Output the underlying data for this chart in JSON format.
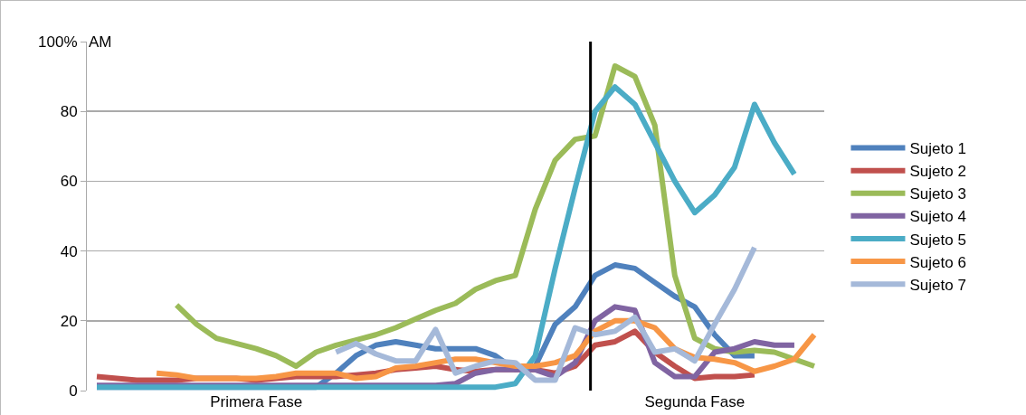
{
  "chart_data": {
    "type": "line",
    "ylabel": "AM",
    "categories": [
      null,
      null,
      null,
      null,
      null,
      null,
      null,
      null,
      "Primera Fase",
      null,
      null,
      null,
      null,
      null,
      null,
      null,
      null,
      null,
      null,
      null,
      null,
      null,
      null,
      null,
      null,
      null,
      null,
      null,
      null,
      null,
      "Segunda Fase",
      null,
      null,
      null,
      null,
      null,
      null
    ],
    "ylim": [
      0,
      100
    ],
    "yticks": [
      0,
      20,
      40,
      60,
      80,
      {
        "value": 100,
        "label": "100%"
      }
    ],
    "grid": "y",
    "legend": "right",
    "marker": "none",
    "line_style": "solid",
    "series": [
      {
        "name": "Sujeto 1",
        "color": "#4f81bd",
        "values": [
          1,
          1,
          1,
          1,
          1,
          1,
          1,
          1,
          1,
          1,
          1,
          1,
          5,
          10,
          13,
          14,
          13,
          12,
          12,
          12,
          10,
          6,
          7,
          19,
          24,
          33,
          36,
          35,
          31,
          27,
          24,
          16,
          10,
          10,
          null,
          null,
          null
        ]
      },
      {
        "name": "Sujeto 2",
        "color": "#c0504d",
        "values": [
          4,
          3.5,
          3,
          3,
          3,
          3.5,
          3.5,
          3.5,
          3,
          3.5,
          4,
          4,
          4,
          4.5,
          5,
          6,
          6.5,
          7,
          6,
          5.5,
          6,
          6,
          6,
          5,
          7,
          13,
          14,
          17,
          11,
          7,
          3.5,
          4,
          4,
          4.5,
          null,
          null,
          null
        ]
      },
      {
        "name": "Sujeto 3",
        "color": "#9bbb59",
        "values": [
          null,
          null,
          null,
          null,
          24.5,
          19,
          15,
          13.5,
          12,
          10,
          7,
          11,
          13,
          14.5,
          16,
          18,
          20.5,
          23,
          25,
          29,
          31.5,
          33,
          52,
          66,
          72,
          73,
          93,
          90,
          76,
          33,
          15,
          12,
          11,
          11.5,
          11,
          9,
          7
        ]
      },
      {
        "name": "Sujeto 4",
        "color": "#8064a2",
        "values": [
          1.5,
          1.5,
          1.5,
          1.5,
          1.5,
          1.5,
          1.5,
          1.5,
          1.5,
          1.5,
          1.5,
          1.5,
          1.5,
          1.5,
          1.5,
          1.5,
          1.5,
          1.5,
          2,
          5,
          6,
          6,
          6,
          4,
          8,
          20,
          24,
          23,
          8,
          4,
          4,
          11,
          12,
          14,
          13,
          13,
          null
        ]
      },
      {
        "name": "Sujeto 5",
        "color": "#4bacc6",
        "values": [
          1,
          1,
          1,
          1,
          1,
          1,
          1,
          1,
          1,
          1,
          1,
          1,
          1,
          1,
          1,
          1,
          1,
          1,
          1,
          1,
          1,
          2,
          10,
          35,
          58,
          80,
          87,
          82,
          71,
          60,
          51,
          56,
          64,
          82,
          71,
          62,
          null
        ]
      },
      {
        "name": "Sujeto 6",
        "color": "#f79646",
        "values": [
          null,
          null,
          null,
          5,
          4.5,
          3.5,
          3.5,
          3.5,
          3.5,
          4,
          5,
          5,
          5,
          3.5,
          4,
          6.5,
          7,
          8,
          9,
          9,
          8,
          7,
          7,
          8,
          10,
          17,
          20,
          20,
          18,
          12,
          9.5,
          9,
          8,
          5.5,
          7,
          9,
          16
        ]
      },
      {
        "name": "Sujeto 7",
        "color": "#a5b9d9",
        "values": [
          null,
          null,
          null,
          null,
          null,
          null,
          null,
          null,
          null,
          null,
          null,
          null,
          11,
          13.5,
          10.5,
          8.5,
          8.5,
          17.5,
          5,
          7,
          8.5,
          8,
          3,
          3,
          18,
          16,
          17,
          21,
          11,
          12,
          8.5,
          19,
          29,
          41,
          null,
          null,
          null
        ]
      }
    ]
  }
}
